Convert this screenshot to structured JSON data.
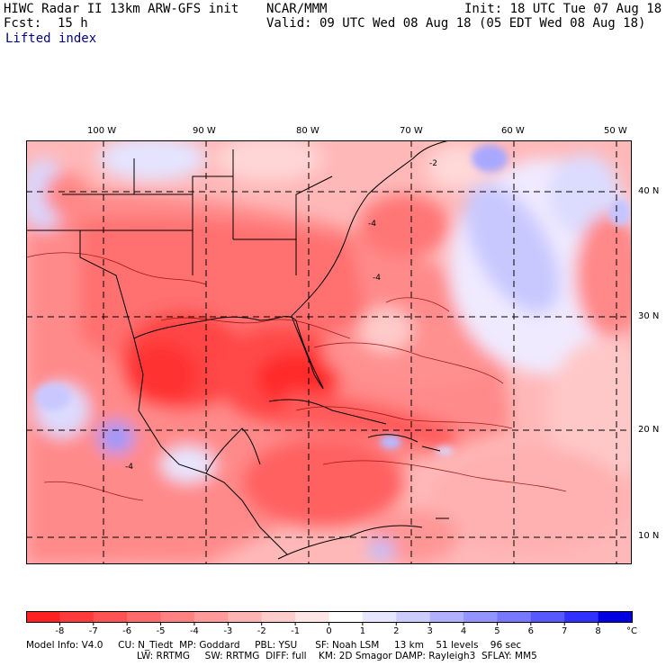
{
  "header": {
    "title": "HIWC Radar II 13km ARW-GFS init",
    "org": "NCAR/MMM",
    "init": "Init: 18 UTC Tue 07 Aug 18",
    "fcst_label": "Fcst:",
    "fcst_value": "15 h",
    "valid": "Valid: 09 UTC Wed 08 Aug 18 (05 EDT Wed 08 Aug 18)",
    "field": "Lifted index"
  },
  "map": {
    "lon_labels": [
      "100 W",
      "90 W",
      "80 W",
      "70 W",
      "60 W",
      "50 W"
    ],
    "lat_labels": [
      "40 N",
      "30 N",
      "20 N",
      "10 N"
    ],
    "contour_labels": [
      "-2",
      "-4",
      "-4",
      "-4"
    ]
  },
  "colorbar": {
    "ticks": [
      "-8",
      "-7",
      "-6",
      "-5",
      "-4",
      "-3",
      "-2",
      "-1",
      "0",
      "1",
      "2",
      "3",
      "4",
      "5",
      "6",
      "7",
      "8"
    ],
    "unit": "°C",
    "colors": [
      "#ff2020",
      "#ff3a3a",
      "#ff5252",
      "#ff6a6a",
      "#ff8282",
      "#ff9a9a",
      "#ffb4b4",
      "#ffcccc",
      "#ffe6e6",
      "#ffffff",
      "#e6e6ff",
      "#ccccff",
      "#b0b0ff",
      "#9494ff",
      "#7878ff",
      "#5858ff",
      "#3030ff",
      "#0000e0"
    ]
  },
  "model_info": {
    "line1": "Model Info: V4.0     CU: N_Tiedt  MP: Goddard     PBL: YSU      SF: Noah LSM     13 km    51 levels    96 sec",
    "line2": "LW: RRTMG     SW: RRTMG  DIFF: full    KM: 2D Smagor DAMP: Rayleigh3  SFLAY: MM5"
  }
}
